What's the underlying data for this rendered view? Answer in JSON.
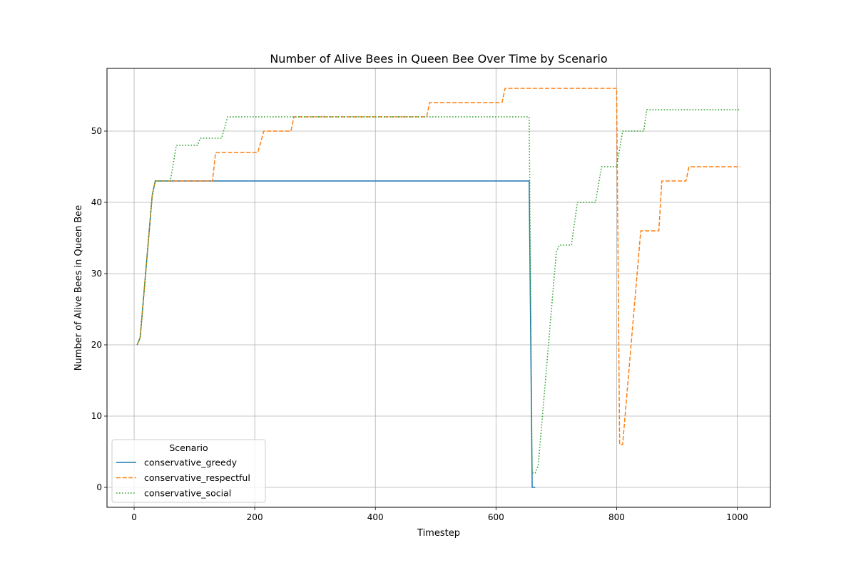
{
  "chart_data": {
    "type": "line",
    "title": "Number of Alive Bees in Queen Bee Over Time by Scenario",
    "xlabel": "Timestep",
    "ylabel": "Number of Alive Bees in Queen Bee",
    "xlim": [
      -45,
      1055
    ],
    "ylim": [
      -2.8,
      58.8
    ],
    "xticks": [
      0,
      200,
      400,
      600,
      800,
      1000
    ],
    "yticks": [
      0,
      10,
      20,
      30,
      40,
      50
    ],
    "grid": true,
    "legend": {
      "title": "Scenario",
      "position": "lower-left"
    },
    "series": [
      {
        "name": "conservative_greedy",
        "color": "#1f77b4",
        "dash": "solid",
        "points": [
          [
            5,
            20
          ],
          [
            10,
            21
          ],
          [
            30,
            41
          ],
          [
            35,
            43
          ],
          [
            655,
            43
          ],
          [
            660,
            0
          ],
          [
            665,
            0
          ]
        ]
      },
      {
        "name": "conservative_respectful",
        "color": "#ff7f0e",
        "dash": "dashed",
        "points": [
          [
            5,
            20
          ],
          [
            10,
            21
          ],
          [
            30,
            41
          ],
          [
            35,
            43
          ],
          [
            130,
            43
          ],
          [
            135,
            47
          ],
          [
            205,
            47
          ],
          [
            215,
            50
          ],
          [
            260,
            50
          ],
          [
            265,
            52
          ],
          [
            485,
            52
          ],
          [
            490,
            54
          ],
          [
            610,
            54
          ],
          [
            615,
            56
          ],
          [
            800,
            56
          ],
          [
            805,
            6
          ],
          [
            810,
            6
          ],
          [
            840,
            36
          ],
          [
            870,
            36
          ],
          [
            875,
            43
          ],
          [
            915,
            43
          ],
          [
            920,
            45
          ],
          [
            1005,
            45
          ]
        ]
      },
      {
        "name": "conservative_social",
        "color": "#2ca02c",
        "dash": "dotted",
        "points": [
          [
            5,
            20
          ],
          [
            10,
            21
          ],
          [
            30,
            41
          ],
          [
            35,
            43
          ],
          [
            60,
            43
          ],
          [
            70,
            48
          ],
          [
            105,
            48
          ],
          [
            110,
            49
          ],
          [
            145,
            49
          ],
          [
            155,
            52
          ],
          [
            655,
            52
          ],
          [
            660,
            2
          ],
          [
            665,
            2
          ],
          [
            670,
            3
          ],
          [
            700,
            33
          ],
          [
            705,
            34
          ],
          [
            725,
            34
          ],
          [
            735,
            40
          ],
          [
            765,
            40
          ],
          [
            775,
            45
          ],
          [
            800,
            45
          ],
          [
            810,
            50
          ],
          [
            845,
            50
          ],
          [
            850,
            53
          ],
          [
            1005,
            53
          ]
        ]
      }
    ]
  }
}
